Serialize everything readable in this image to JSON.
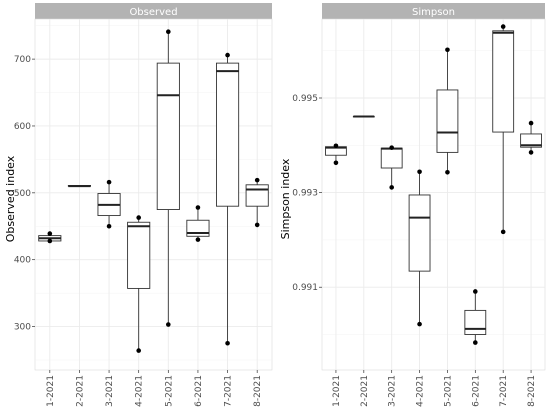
{
  "chart_data": [
    {
      "type": "boxplot",
      "title": "Observed",
      "xlabel": "",
      "ylabel": "Observed index",
      "categories": [
        "1-2021",
        "2-2021",
        "3-2021",
        "4-2021",
        "5-2021",
        "6-2021",
        "7-2021",
        "8-2021"
      ],
      "ylim": [
        235,
        760
      ],
      "yticks": [
        300,
        400,
        500,
        600,
        700
      ],
      "ytick_labels": [
        "300",
        "400",
        "500",
        "600",
        "700"
      ],
      "grid": true,
      "boxes": [
        {
          "category": "1-2021",
          "min": 428,
          "q1": 428,
          "median": 432,
          "q3": 436,
          "max": 439,
          "points": [
            428,
            439
          ]
        },
        {
          "category": "2-2021",
          "min": 510,
          "q1": 510,
          "median": 510,
          "q3": 511,
          "max": 511,
          "points": []
        },
        {
          "category": "3-2021",
          "min": 450,
          "q1": 466,
          "median": 482,
          "q3": 499,
          "max": 516,
          "points": [
            450,
            516
          ]
        },
        {
          "category": "4-2021",
          "min": 264,
          "q1": 357,
          "median": 450,
          "q3": 456,
          "max": 463,
          "points": [
            264,
            463
          ]
        },
        {
          "category": "5-2021",
          "min": 303,
          "q1": 475,
          "median": 646,
          "q3": 694,
          "max": 741,
          "points": [
            303,
            741
          ]
        },
        {
          "category": "6-2021",
          "min": 430,
          "q1": 435,
          "median": 440,
          "q3": 459,
          "max": 478,
          "points": [
            430,
            478
          ]
        },
        {
          "category": "7-2021",
          "min": 275,
          "q1": 480,
          "median": 682,
          "q3": 694,
          "max": 706,
          "points": [
            275,
            706
          ]
        },
        {
          "category": "8-2021",
          "min": 452,
          "q1": 480,
          "median": 505,
          "q3": 512,
          "max": 519,
          "points": [
            452,
            519
          ]
        }
      ]
    },
    {
      "type": "boxplot",
      "title": "Simpson",
      "xlabel": "",
      "ylabel": "Simpson index",
      "categories": [
        "1-2021",
        "2-2021",
        "3-2021",
        "4-2021",
        "5-2021",
        "6-2021",
        "7-2021",
        "8-2021"
      ],
      "ylim": [
        0.98925,
        0.99667
      ],
      "yticks": [
        0.991,
        0.993,
        0.995
      ],
      "ytick_labels": [
        "0.991",
        "0.993",
        "0.995"
      ],
      "grid": true,
      "boxes": [
        {
          "category": "1-2021",
          "min": 0.99363,
          "q1": 0.99379,
          "median": 0.99395,
          "q3": 0.99397,
          "max": 0.99399,
          "points": [
            0.99363,
            0.99399
          ]
        },
        {
          "category": "2-2021",
          "min": 0.9946,
          "q1": 0.9946,
          "median": 0.99461,
          "q3": 0.99461,
          "max": 0.99462,
          "points": []
        },
        {
          "category": "3-2021",
          "min": 0.99311,
          "q1": 0.99352,
          "median": 0.99393,
          "q3": 0.99394,
          "max": 0.99395,
          "points": [
            0.99311,
            0.99395
          ]
        },
        {
          "category": "4-2021",
          "min": 0.99022,
          "q1": 0.99134,
          "median": 0.99247,
          "q3": 0.99295,
          "max": 0.99344,
          "points": [
            0.99022,
            0.99344
          ]
        },
        {
          "category": "5-2021",
          "min": 0.99343,
          "q1": 0.99385,
          "median": 0.99427,
          "q3": 0.99517,
          "max": 0.99602,
          "points": [
            0.99343,
            0.99602
          ]
        },
        {
          "category": "6-2021",
          "min": 0.98983,
          "q1": 0.99,
          "median": 0.99012,
          "q3": 0.99051,
          "max": 0.99091,
          "points": [
            0.98983,
            0.99091
          ]
        },
        {
          "category": "7-2021",
          "min": 0.99217,
          "q1": 0.99428,
          "median": 0.99638,
          "q3": 0.99642,
          "max": 0.99651,
          "points": [
            0.99217,
            0.99651
          ]
        },
        {
          "category": "8-2021",
          "min": 0.99385,
          "q1": 0.99396,
          "median": 0.994,
          "q3": 0.99424,
          "max": 0.99447,
          "points": [
            0.99385,
            0.99447
          ]
        }
      ]
    }
  ]
}
